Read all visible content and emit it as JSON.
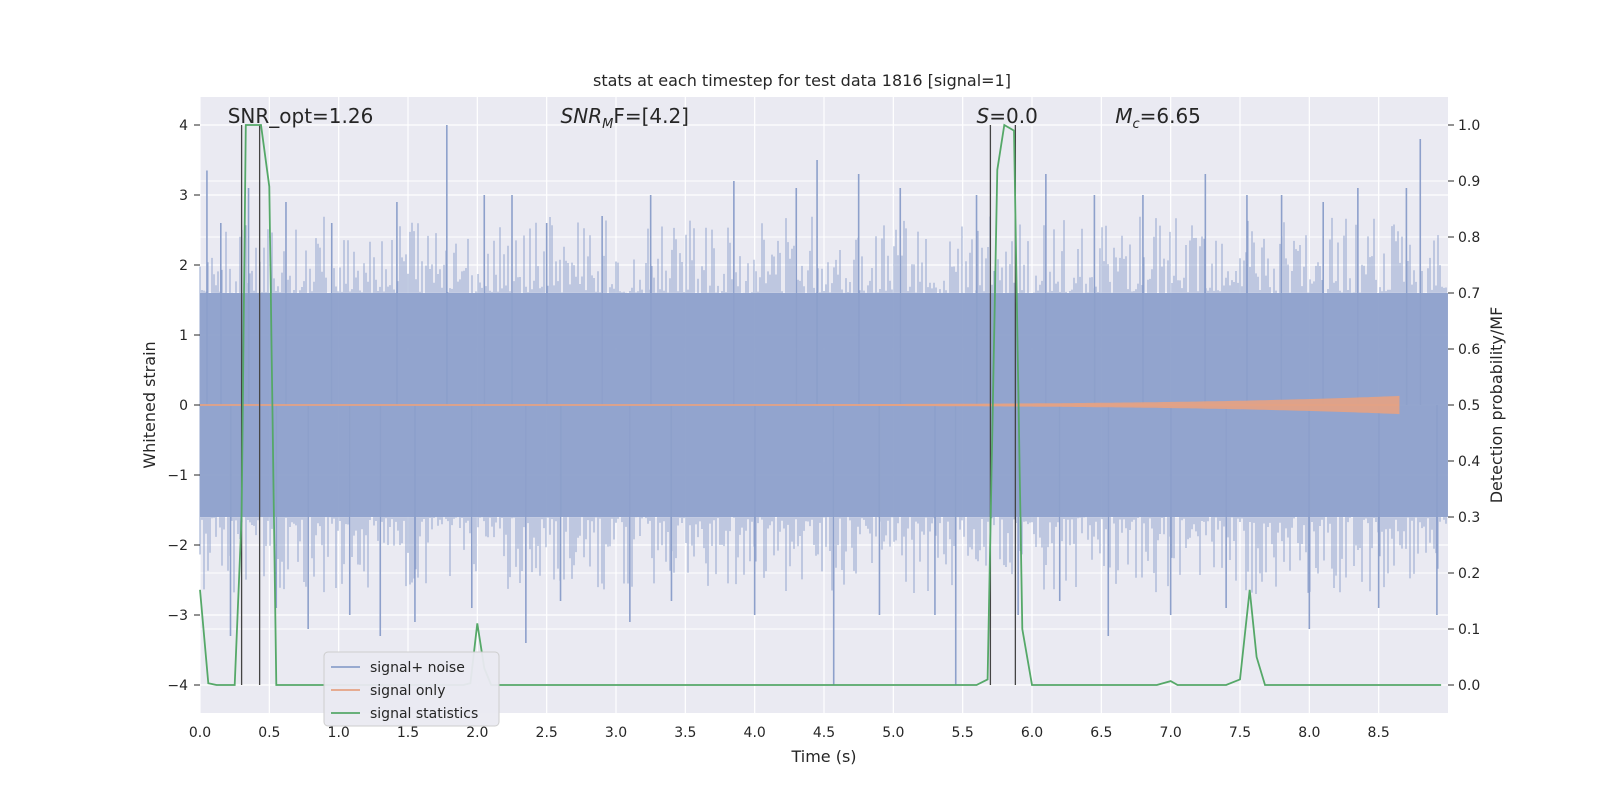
{
  "chart_data": {
    "type": "line",
    "title": "stats at each timestep for test data 1816 [signal=1]",
    "xlabel": "Time (s)",
    "ylabel": "Whitened strain",
    "y2label": "Detection probability/MF",
    "xlim": [
      0,
      9
    ],
    "ylim": [
      -4.4,
      4.4
    ],
    "y2lim": [
      -0.05,
      1.05
    ],
    "xticks": [
      "0.0",
      "0.5",
      "1.0",
      "1.5",
      "2.0",
      "2.5",
      "3.0",
      "3.5",
      "4.0",
      "4.5",
      "5.0",
      "5.5",
      "6.0",
      "6.5",
      "7.0",
      "7.5",
      "8.0",
      "8.5"
    ],
    "yticks": [
      "4",
      "3",
      "2",
      "1",
      "0",
      "−1",
      "−2",
      "−3",
      "−4"
    ],
    "y2ticks": [
      "1.0",
      "0.9",
      "0.8",
      "0.7",
      "0.6",
      "0.5",
      "0.4",
      "0.3",
      "0.2",
      "0.1",
      "0.0"
    ],
    "grid": true,
    "legend_position": "lower-left",
    "annotations": [
      {
        "name": "snr-opt-annotation",
        "prefix": "SNR_opt=1.26",
        "sub": "",
        "suffix": "",
        "x": 0.2
      },
      {
        "name": "snr-mf-annotation",
        "prefix": "SNR",
        "sub": "M",
        "suffix": "F=[4.2]",
        "x": 2.6
      },
      {
        "name": "s-annotation",
        "prefix": "S",
        "sub": "",
        "suffix": "=0.0",
        "x": 5.6
      },
      {
        "name": "mc-annotation",
        "prefix": "M",
        "sub": "c",
        "suffix": "=6.65",
        "x": 6.6
      }
    ],
    "vertical_lines": [
      0.3,
      0.43,
      5.7,
      5.88
    ],
    "series": [
      {
        "name": "signal+ noise",
        "color": "#8da0cb",
        "style": "noise",
        "band": [
          -1.6,
          1.6
        ],
        "spikes": [
          {
            "x": 0.05,
            "y": 3.35
          },
          {
            "x": 0.15,
            "y": 2.6
          },
          {
            "x": 0.22,
            "y": -3.3
          },
          {
            "x": 0.35,
            "y": 3.1
          },
          {
            "x": 0.55,
            "y": -2.9
          },
          {
            "x": 0.62,
            "y": 2.9
          },
          {
            "x": 0.78,
            "y": -3.2
          },
          {
            "x": 0.95,
            "y": 2.6
          },
          {
            "x": 1.08,
            "y": -3.0
          },
          {
            "x": 1.3,
            "y": -3.3
          },
          {
            "x": 1.42,
            "y": 2.9
          },
          {
            "x": 1.55,
            "y": -3.1
          },
          {
            "x": 1.78,
            "y": 4.0
          },
          {
            "x": 1.96,
            "y": -2.9
          },
          {
            "x": 2.05,
            "y": 3.0
          },
          {
            "x": 2.25,
            "y": 3.0
          },
          {
            "x": 2.35,
            "y": -3.4
          },
          {
            "x": 2.5,
            "y": 2.6
          },
          {
            "x": 2.6,
            "y": -2.8
          },
          {
            "x": 2.9,
            "y": 2.7
          },
          {
            "x": 3.1,
            "y": -3.1
          },
          {
            "x": 3.25,
            "y": 3.0
          },
          {
            "x": 3.4,
            "y": -2.8
          },
          {
            "x": 3.85,
            "y": 3.2
          },
          {
            "x": 4.0,
            "y": -3.0
          },
          {
            "x": 4.3,
            "y": 3.1
          },
          {
            "x": 4.45,
            "y": 3.5
          },
          {
            "x": 4.57,
            "y": -4.0
          },
          {
            "x": 4.75,
            "y": 3.3
          },
          {
            "x": 4.9,
            "y": -3.0
          },
          {
            "x": 5.05,
            "y": 3.1
          },
          {
            "x": 5.3,
            "y": -3.0
          },
          {
            "x": 5.45,
            "y": -4.0
          },
          {
            "x": 5.6,
            "y": 3.0
          },
          {
            "x": 5.9,
            "y": -3.0
          },
          {
            "x": 6.1,
            "y": 3.3
          },
          {
            "x": 6.2,
            "y": -2.8
          },
          {
            "x": 6.45,
            "y": 3.0
          },
          {
            "x": 6.55,
            "y": -3.3
          },
          {
            "x": 6.8,
            "y": 3.0
          },
          {
            "x": 7.0,
            "y": -3.0
          },
          {
            "x": 7.25,
            "y": 3.3
          },
          {
            "x": 7.4,
            "y": -2.9
          },
          {
            "x": 7.55,
            "y": 3.0
          },
          {
            "x": 7.8,
            "y": 3.0
          },
          {
            "x": 8.0,
            "y": -3.2
          },
          {
            "x": 8.1,
            "y": 2.9
          },
          {
            "x": 8.35,
            "y": 3.1
          },
          {
            "x": 8.5,
            "y": -2.9
          },
          {
            "x": 8.7,
            "y": 3.1
          },
          {
            "x": 8.8,
            "y": 3.8
          },
          {
            "x": 8.92,
            "y": -3.0
          }
        ]
      },
      {
        "name": "signal only",
        "color": "#e5a283",
        "style": "chirp",
        "x_end": 8.65,
        "max_amplitude": 0.12
      },
      {
        "name": "signal statistics",
        "color": "#55a868",
        "style": "line",
        "axis": "right",
        "x": [
          0.0,
          0.06,
          0.12,
          0.25,
          0.3,
          0.33,
          0.36,
          0.39,
          0.44,
          0.5,
          0.55,
          0.6,
          1.9,
          1.95,
          2.0,
          2.05,
          2.1,
          5.6,
          5.68,
          5.75,
          5.8,
          5.87,
          5.93,
          6.0,
          6.9,
          7.0,
          7.05,
          7.4,
          7.5,
          7.57,
          7.62,
          7.68,
          8.1,
          8.2,
          8.95
        ],
        "values": [
          0.17,
          0.003,
          0.0,
          0.0,
          0.3,
          1.0,
          1.0,
          1.0,
          1.0,
          0.89,
          0.0,
          0.0,
          0.0,
          0.003,
          0.11,
          0.03,
          0.0,
          0.0,
          0.01,
          0.92,
          1.0,
          0.99,
          0.1,
          0.0,
          0.0,
          0.007,
          0.0,
          0.0,
          0.01,
          0.17,
          0.05,
          0.0,
          0.0,
          0.0,
          0.0
        ]
      }
    ]
  }
}
